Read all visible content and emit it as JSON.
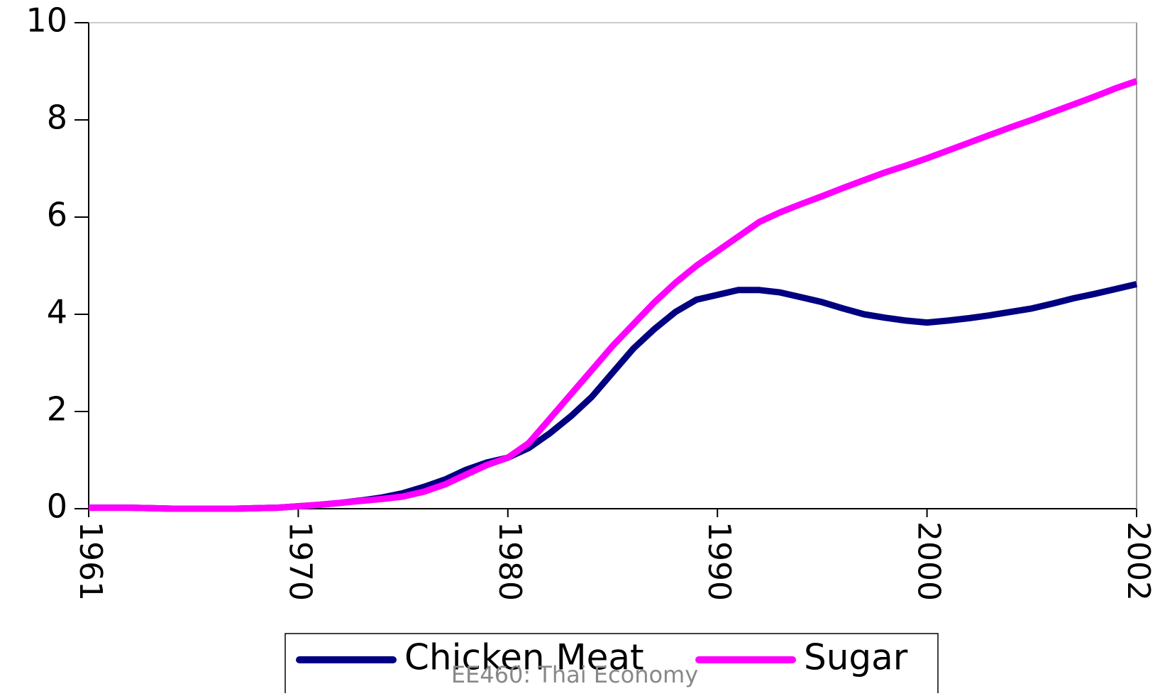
{
  "chart_data": {
    "type": "line",
    "categories": [
      "1961",
      null,
      null,
      null,
      null,
      null,
      null,
      null,
      null,
      null,
      "1970",
      null,
      null,
      null,
      null,
      null,
      null,
      null,
      null,
      null,
      "1980",
      null,
      null,
      null,
      null,
      null,
      null,
      null,
      null,
      null,
      "1990",
      null,
      null,
      null,
      null,
      null,
      null,
      null,
      null,
      null,
      "2000",
      null,
      null,
      null,
      null,
      null,
      null,
      null,
      null,
      null,
      "2002"
    ],
    "series": [
      {
        "name": "Chicken Meat",
        "color": "#000080",
        "values": [
          0.02,
          0.02,
          0.02,
          0.01,
          0,
          0,
          0,
          0,
          0.01,
          0.02,
          0.05,
          0.08,
          0.12,
          0.17,
          0.23,
          0.32,
          0.45,
          0.6,
          0.8,
          0.95,
          1.05,
          1.25,
          1.55,
          1.9,
          2.3,
          2.8,
          3.3,
          3.7,
          4.05,
          4.3,
          4.4,
          4.5,
          4.5,
          4.45,
          4.35,
          4.25,
          4.12,
          4.0,
          3.93,
          3.87,
          3.83,
          3.87,
          3.92,
          3.98,
          4.05,
          4.12,
          4.22,
          4.33,
          4.42,
          4.52,
          4.62
        ]
      },
      {
        "name": "Sugar",
        "color": "#ff00ff",
        "values": [
          0.02,
          0.02,
          0.02,
          0.01,
          0,
          0,
          0,
          0,
          0.01,
          0.02,
          0.05,
          0.08,
          0.12,
          0.16,
          0.2,
          0.25,
          0.35,
          0.5,
          0.7,
          0.9,
          1.05,
          1.35,
          1.85,
          2.35,
          2.85,
          3.35,
          3.8,
          4.25,
          4.65,
          5.0,
          5.3,
          5.6,
          5.9,
          6.1,
          6.27,
          6.43,
          6.6,
          6.76,
          6.92,
          7.06,
          7.21,
          7.37,
          7.53,
          7.69,
          7.85,
          8.0,
          8.16,
          8.32,
          8.48,
          8.65,
          8.8
        ]
      }
    ],
    "ylim": [
      0,
      10
    ],
    "yticks": [
      0,
      2,
      4,
      6,
      8,
      10
    ],
    "grid": false,
    "legend": "bottom"
  },
  "footer": "EE460: Thai Economy"
}
